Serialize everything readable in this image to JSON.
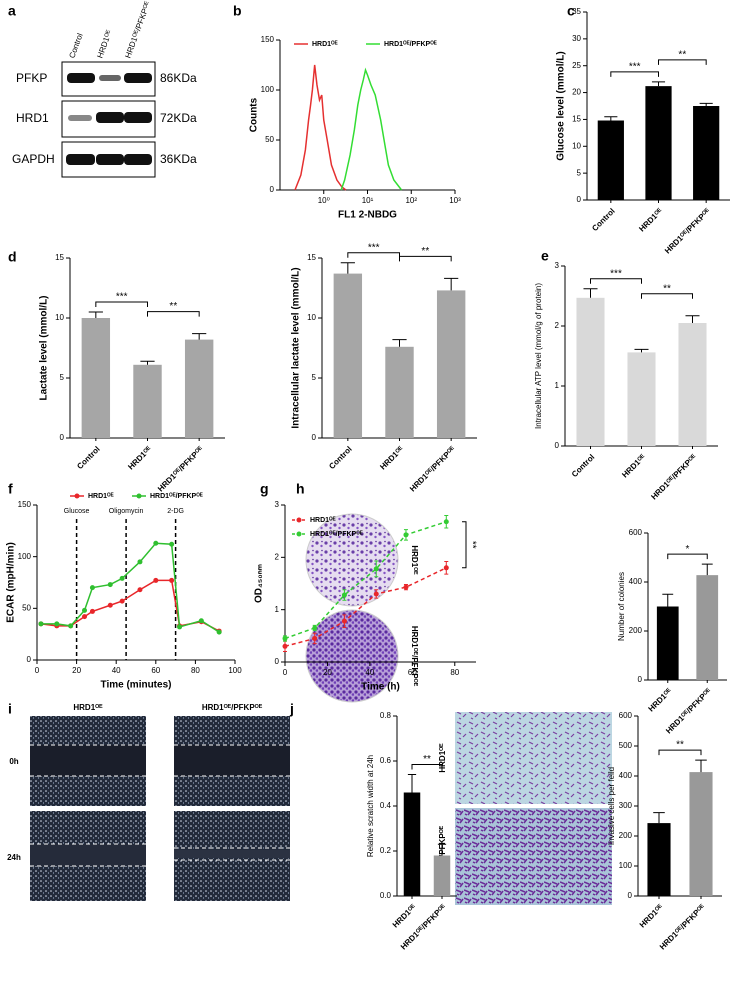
{
  "chart_data": [
    {
      "type": "line",
      "panel": "b",
      "xlabel": "FL1 2-NBDG",
      "ylabel": "Counts",
      "log_x": true,
      "xlim": [
        0.1,
        1000
      ],
      "xticks": [
        {
          "value": 1,
          "label": "10⁰"
        },
        {
          "value": 10,
          "label": "10¹"
        },
        {
          "value": 100,
          "label": "10²"
        },
        {
          "value": 1000,
          "label": "10³"
        }
      ],
      "ylim": [
        0,
        150
      ],
      "yticks": [
        0,
        50,
        100,
        150
      ],
      "legend": "top",
      "markers": false,
      "series": [
        {
          "name": "HRD1ᴼᴱ",
          "color": "#e53030",
          "x": [
            0.22,
            0.3,
            0.38,
            0.45,
            0.5,
            0.55,
            0.62,
            0.7,
            0.8,
            0.9,
            1.0,
            1.2,
            1.5,
            2.0,
            2.6,
            3.2
          ],
          "values": [
            0,
            15,
            40,
            70,
            85,
            100,
            125,
            105,
            90,
            95,
            70,
            50,
            25,
            10,
            3,
            0
          ]
        },
        {
          "name": "HRD1ᴼᴱ/PFKPᴼᴱ",
          "color": "#33dd33",
          "x": [
            2.5,
            3,
            4,
            5,
            6,
            7,
            8,
            9,
            10,
            12,
            15,
            20,
            25,
            30,
            40,
            60
          ],
          "values": [
            0,
            10,
            35,
            60,
            85,
            100,
            110,
            120,
            115,
            105,
            95,
            70,
            45,
            25,
            10,
            0
          ]
        }
      ]
    },
    {
      "type": "bar",
      "panel": "c",
      "ylabel": "Glucose level (mmol/L)",
      "categories": [
        "Control",
        "HRD1ᴼᴱ",
        "HRD1ᴼᴱ/PFKPᴼᴱ"
      ],
      "values": [
        14.8,
        21.2,
        17.5
      ],
      "errors": [
        0.7,
        0.8,
        0.5
      ],
      "color": "#000000",
      "ylim": [
        0,
        35
      ],
      "yticks": [
        0,
        5,
        10,
        15,
        20,
        25,
        30,
        35
      ],
      "annotations": [
        {
          "text": "***",
          "between": [
            "Control",
            "HRD1ᴼᴱ"
          ]
        },
        {
          "text": "**",
          "between": [
            "HRD1ᴼᴱ",
            "HRD1ᴼᴱ/PFKPᴼᴱ"
          ]
        }
      ]
    },
    {
      "type": "bar",
      "panel": "d",
      "ylabel": "Lactate level (mmol/L)",
      "categories": [
        "Control",
        "HRD1ᴼᴱ",
        "HRD1ᴼᴱ/PFKPᴼᴱ"
      ],
      "values": [
        10.0,
        6.1,
        8.2
      ],
      "errors": [
        0.5,
        0.3,
        0.5
      ],
      "color": "#a6a6a6",
      "ylim": [
        0,
        15
      ],
      "yticks": [
        0,
        5,
        10,
        15
      ],
      "annotations": [
        {
          "text": "***",
          "between": [
            "Control",
            "HRD1ᴼᴱ"
          ]
        },
        {
          "text": "**",
          "between": [
            "HRD1ᴼᴱ",
            "HRD1ᴼᴱ/PFKPᴼᴱ"
          ]
        }
      ]
    },
    {
      "type": "bar",
      "ylabel": "Intracellular lactate level (mmol/L)",
      "categories": [
        "Control",
        "HRD1ᴼᴱ",
        "HRD1ᴼᴱ/PFKPᴼᴱ"
      ],
      "values": [
        13.7,
        7.6,
        12.3
      ],
      "errors": [
        0.9,
        0.6,
        1.0
      ],
      "color": "#a6a6a6",
      "ylim": [
        0,
        15
      ],
      "yticks": [
        0,
        5,
        10,
        15
      ],
      "annotations": [
        {
          "text": "***",
          "between": [
            "Control",
            "HRD1ᴼᴱ"
          ]
        },
        {
          "text": "**",
          "between": [
            "HRD1ᴼᴱ",
            "HRD1ᴼᴱ/PFKPᴼᴱ"
          ]
        }
      ]
    },
    {
      "type": "bar",
      "panel": "e",
      "ylabel": "Intracellular ATP level (mmol/g of protein)",
      "categories": [
        "Control",
        "HRD1ᴼᴱ",
        "HRD1ᴼᴱ/PFKPᴼᴱ"
      ],
      "values": [
        2.47,
        1.56,
        2.05
      ],
      "errors": [
        0.15,
        0.05,
        0.12
      ],
      "color": "#d9d9d9",
      "ylim": [
        0,
        3
      ],
      "yticks": [
        0,
        1,
        2,
        3
      ],
      "annotations": [
        {
          "text": "***",
          "between": [
            "Control",
            "HRD1ᴼᴱ"
          ]
        },
        {
          "text": "**",
          "between": [
            "HRD1ᴼᴱ",
            "HRD1ᴼᴱ/PFKPᴼᴱ"
          ]
        }
      ]
    },
    {
      "type": "line",
      "panel": "f",
      "xlabel": "Time (minutes)",
      "ylabel": "ECAR (mpH/min)",
      "xlim": [
        0,
        100
      ],
      "xticks": [
        0,
        20,
        40,
        60,
        80,
        100
      ],
      "ylim": [
        0,
        150
      ],
      "yticks": [
        0,
        50,
        100,
        150
      ],
      "legend": "top",
      "markers": true,
      "events": [
        {
          "x": 20,
          "label": "Glucose"
        },
        {
          "x": 45,
          "label": "Oligomycin"
        },
        {
          "x": 70,
          "label": "2-DG"
        }
      ],
      "series": [
        {
          "name": "HRD1ᴼᴱ",
          "color": "#e8262a",
          "x": [
            2,
            10,
            17,
            24,
            28,
            37,
            43,
            52,
            60,
            68,
            72,
            83,
            92
          ],
          "values": [
            35,
            33,
            33,
            42,
            47,
            53,
            57,
            68,
            77,
            77,
            33,
            37,
            28
          ]
        },
        {
          "name": "HRD1ᴼᴱ/PFKPᴼᴱ",
          "color": "#2fbf2f",
          "x": [
            2,
            10,
            17,
            24,
            28,
            37,
            43,
            52,
            60,
            68,
            72,
            83,
            92
          ],
          "values": [
            35,
            35,
            33,
            48,
            70,
            73,
            79,
            95,
            113,
            112,
            32,
            38,
            27
          ]
        }
      ]
    },
    {
      "type": "line",
      "panel": "g",
      "xlabel": "Time (h)",
      "ylabel": "OD₄₅₀ₙₘ",
      "xlim": [
        0,
        90
      ],
      "xticks": [
        0,
        20,
        40,
        60,
        80
      ],
      "ylim": [
        0,
        3
      ],
      "yticks": [
        0,
        1,
        2,
        3
      ],
      "legend": "top",
      "markers": true,
      "dashed": true,
      "annotations": [
        {
          "text": "**"
        }
      ],
      "series": [
        {
          "name": "HRD1ᴼᴱ",
          "color": "#e8262a",
          "x": [
            0,
            14,
            28,
            43,
            57,
            76
          ],
          "values": [
            0.3,
            0.45,
            0.78,
            1.3,
            1.43,
            1.8
          ],
          "errors": [
            0.1,
            0.1,
            0.12,
            0.08,
            0.05,
            0.12
          ]
        },
        {
          "name": "HRD1ᴼᴱ/PFKPᴼᴱ",
          "color": "#33cc33",
          "x": [
            0,
            14,
            28,
            43,
            57,
            76
          ],
          "values": [
            0.45,
            0.65,
            1.28,
            1.78,
            2.43,
            2.68
          ],
          "errors": [
            0.05,
            0.05,
            0.1,
            0.15,
            0.1,
            0.12
          ]
        }
      ]
    },
    {
      "type": "bar",
      "panel": "h",
      "ylabel": "Number of colonies",
      "categories": [
        "HRD1ᴼᴱ",
        "HRD1ᴼᴱ/PFKPᴼᴱ"
      ],
      "values": [
        300,
        428
      ],
      "errors": [
        50,
        45
      ],
      "colors": [
        "#000000",
        "#999999"
      ],
      "ylim": [
        0,
        600
      ],
      "yticks": [
        0,
        200,
        400,
        600
      ],
      "annotations": [
        {
          "text": "*",
          "between": [
            "HRD1ᴼᴱ",
            "HRD1ᴼᴱ/PFKPᴼᴱ"
          ]
        }
      ]
    },
    {
      "type": "bar",
      "panel": "i",
      "ylabel": "Relative scratch width at 24h",
      "categories": [
        "HRD1ᴼᴱ",
        "HRD1ᴼᴱ/PFKPᴼᴱ"
      ],
      "values": [
        0.46,
        0.18
      ],
      "errors": [
        0.08,
        0.05
      ],
      "colors": [
        "#000000",
        "#999999"
      ],
      "ylim": [
        0,
        0.8
      ],
      "yticks": [
        {
          "value": 0,
          "label": "0.0"
        },
        0.2,
        0.4,
        0.6,
        0.8
      ],
      "annotations": [
        {
          "text": "**",
          "between": [
            "HRD1ᴼᴱ",
            "HRD1ᴼᴱ/PFKPᴼᴱ"
          ]
        }
      ]
    },
    {
      "type": "bar",
      "panel": "j",
      "ylabel": "Invasive cells per feild",
      "categories": [
        "HRD1ᴼᴱ",
        "HRD1ᴼᴱ/PFKPᴼᴱ"
      ],
      "values": [
        243,
        413
      ],
      "errors": [
        35,
        40
      ],
      "colors": [
        "#000000",
        "#999999"
      ],
      "ylim": [
        0,
        600
      ],
      "yticks": [
        0,
        100,
        200,
        300,
        400,
        500,
        600
      ],
      "annotations": [
        {
          "text": "**",
          "between": [
            "HRD1ᴼᴱ",
            "HRD1ᴼᴱ/PFKPᴼᴱ"
          ]
        }
      ]
    }
  ],
  "blot": {
    "panel": "a",
    "columns": [
      "Control",
      "HRD1ᴼᴱ",
      "HRD1ᴼᴱ/PFKPᴼᴱ"
    ],
    "rows": [
      {
        "protein": "PFKP",
        "size": "86KDa"
      },
      {
        "protein": "HRD1",
        "size": "72KDa"
      },
      {
        "protein": "GAPDH",
        "size": "36KDa"
      }
    ]
  },
  "colony_images": {
    "rows": [
      "HRD1ᴼᴱ",
      "HRD1ᴼᴱ/PFKPᴼᴱ"
    ]
  },
  "scratch_images": {
    "columns": [
      "HRD1ᴼᴱ",
      "HRD1ᴼᴱ/PFKPᴼᴱ"
    ],
    "rows": [
      "0h",
      "24h"
    ]
  },
  "invasion_images": {
    "rows": [
      "HRD1ᴼᴱ",
      "HRD1ᴼᴱ/PFKPᴼᴱ"
    ]
  }
}
